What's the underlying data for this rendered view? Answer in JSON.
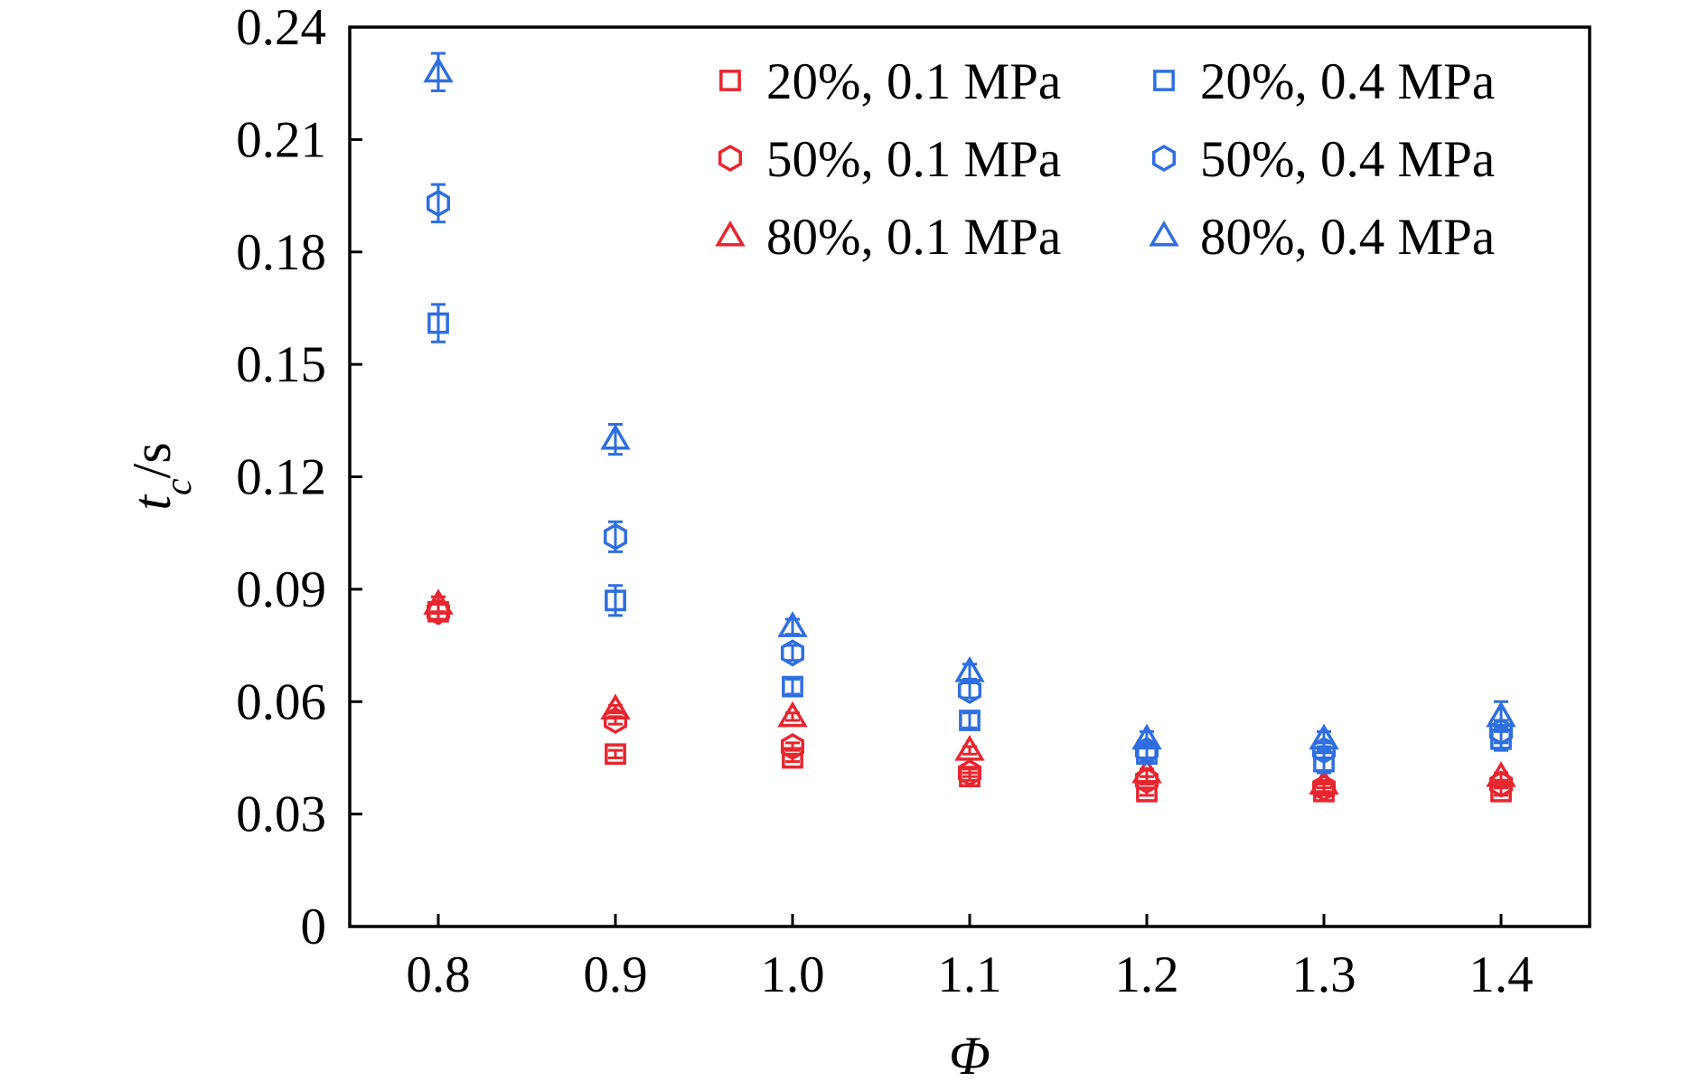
{
  "chart_data": {
    "type": "scatter",
    "title": "",
    "xlabel": "Φ",
    "ylabel": {
      "main": "t",
      "subscript": "c",
      "unit": "/s"
    },
    "xlim": [
      0.75,
      1.45
    ],
    "ylim": [
      0,
      0.24
    ],
    "x_ticks": [
      {
        "value": 0.8,
        "label": "0.8"
      },
      {
        "value": 0.9,
        "label": "0.9"
      },
      {
        "value": 1.0,
        "label": "1.0"
      },
      {
        "value": 1.1,
        "label": "1.1"
      },
      {
        "value": 1.2,
        "label": "1.2"
      },
      {
        "value": 1.3,
        "label": "1.3"
      },
      {
        "value": 1.4,
        "label": "1.4"
      }
    ],
    "y_ticks": [
      {
        "value": 0,
        "label": "0"
      },
      {
        "value": 0.03,
        "label": "0.03"
      },
      {
        "value": 0.06,
        "label": "0.06"
      },
      {
        "value": 0.09,
        "label": "0.09"
      },
      {
        "value": 0.12,
        "label": "0.12"
      },
      {
        "value": 0.15,
        "label": "0.15"
      },
      {
        "value": 0.18,
        "label": "0.18"
      },
      {
        "value": 0.21,
        "label": "0.21"
      },
      {
        "value": 0.24,
        "label": "0.24"
      }
    ],
    "grid": false,
    "legend_position": "top-right",
    "series": [
      {
        "name": "20%, 0.1 MPa",
        "marker": "square",
        "color": "#e8262f",
        "x": [
          0.8,
          0.9,
          1.0,
          1.1,
          1.2,
          1.3,
          1.4
        ],
        "y": [
          0.084,
          0.046,
          0.045,
          0.04,
          0.036,
          0.036,
          0.036
        ],
        "err": [
          0.002,
          0.001,
          0.001,
          0.001,
          0.001,
          0.001,
          0.001
        ]
      },
      {
        "name": "50%, 0.1 MPa",
        "marker": "hexagon",
        "color": "#e8262f",
        "x": [
          0.8,
          0.9,
          1.0,
          1.1,
          1.2,
          1.3,
          1.4
        ],
        "y": [
          0.084,
          0.055,
          0.048,
          0.041,
          0.039,
          0.037,
          0.038
        ],
        "err": [
          0.002,
          0.001,
          0.001,
          0.001,
          0.001,
          0.001,
          0.001
        ]
      },
      {
        "name": "80%, 0.1 MPa",
        "marker": "triangle",
        "color": "#e8262f",
        "x": [
          0.8,
          0.9,
          1.0,
          1.1,
          1.2,
          1.3,
          1.4
        ],
        "y": [
          0.086,
          0.058,
          0.056,
          0.047,
          0.041,
          0.038,
          0.04
        ],
        "err": [
          0.002,
          0.001,
          0.001,
          0.001,
          0.001,
          0.001,
          0.001
        ]
      },
      {
        "name": "20%, 0.4 MPa",
        "marker": "square",
        "color": "#2f6ee0",
        "x": [
          0.8,
          0.9,
          1.0,
          1.1,
          1.2,
          1.3,
          1.4
        ],
        "y": [
          0.161,
          0.087,
          0.064,
          0.055,
          0.046,
          0.044,
          0.05
        ],
        "err": [
          0.005,
          0.004,
          0.002,
          0.002,
          0.002,
          0.003,
          0.003
        ]
      },
      {
        "name": "50%, 0.4 MPa",
        "marker": "hexagon",
        "color": "#2f6ee0",
        "x": [
          0.8,
          0.9,
          1.0,
          1.1,
          1.2,
          1.3,
          1.4
        ],
        "y": [
          0.193,
          0.104,
          0.073,
          0.063,
          0.047,
          0.047,
          0.052
        ],
        "err": [
          0.005,
          0.004,
          0.002,
          0.002,
          0.002,
          0.002,
          0.003
        ]
      },
      {
        "name": "80%, 0.4 MPa",
        "marker": "triangle",
        "color": "#2f6ee0",
        "x": [
          0.8,
          0.9,
          1.0,
          1.1,
          1.2,
          1.3,
          1.4
        ],
        "y": [
          0.228,
          0.13,
          0.08,
          0.068,
          0.05,
          0.05,
          0.056
        ],
        "err": [
          0.005,
          0.004,
          0.002,
          0.002,
          0.002,
          0.002,
          0.004
        ]
      }
    ],
    "legend_layout": [
      [
        "20%, 0.1 MPa",
        "20%, 0.4 MPa"
      ],
      [
        "50%, 0.1 MPa",
        "50%, 0.4 MPa"
      ],
      [
        "80%, 0.1 MPa",
        "80%, 0.4 MPa"
      ]
    ]
  }
}
